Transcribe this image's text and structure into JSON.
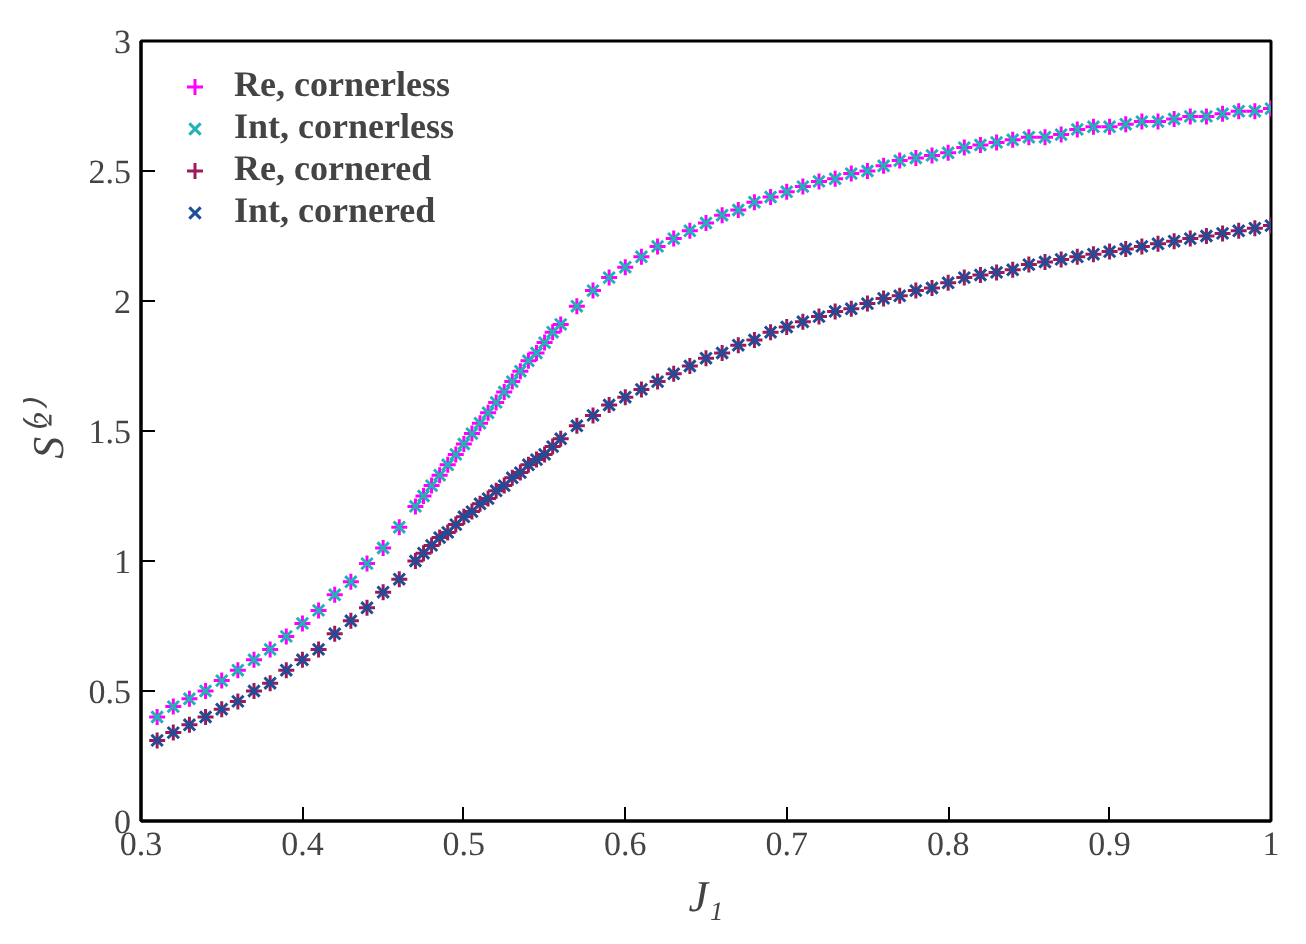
{
  "chart_data": {
    "type": "scatter",
    "xlabel": "J₁",
    "ylabel": "S⁽²⁾",
    "x": [
      0.31,
      0.32,
      0.33,
      0.34,
      0.35,
      0.36,
      0.37,
      0.38,
      0.39,
      0.4,
      0.41,
      0.42,
      0.43,
      0.44,
      0.45,
      0.46,
      0.47,
      0.475,
      0.48,
      0.485,
      0.49,
      0.495,
      0.5,
      0.505,
      0.51,
      0.515,
      0.52,
      0.525,
      0.53,
      0.535,
      0.54,
      0.545,
      0.55,
      0.555,
      0.56,
      0.57,
      0.58,
      0.59,
      0.6,
      0.61,
      0.62,
      0.63,
      0.64,
      0.65,
      0.66,
      0.67,
      0.68,
      0.69,
      0.7,
      0.71,
      0.72,
      0.73,
      0.74,
      0.75,
      0.76,
      0.77,
      0.78,
      0.79,
      0.8,
      0.81,
      0.82,
      0.83,
      0.84,
      0.85,
      0.86,
      0.87,
      0.88,
      0.89,
      0.9,
      0.91,
      0.92,
      0.93,
      0.94,
      0.95,
      0.96,
      0.97,
      0.98,
      0.99,
      1.0
    ],
    "series": [
      {
        "name": "Re, cornerless",
        "color": "#ff00ff",
        "marker": "cross",
        "values": [
          0.4,
          0.44,
          0.47,
          0.5,
          0.54,
          0.58,
          0.62,
          0.66,
          0.71,
          0.76,
          0.81,
          0.87,
          0.92,
          0.99,
          1.05,
          1.13,
          1.21,
          1.25,
          1.29,
          1.33,
          1.37,
          1.41,
          1.45,
          1.49,
          1.53,
          1.57,
          1.61,
          1.65,
          1.69,
          1.73,
          1.77,
          1.8,
          1.84,
          1.88,
          1.91,
          1.98,
          2.04,
          2.09,
          2.13,
          2.17,
          2.21,
          2.24,
          2.27,
          2.3,
          2.33,
          2.35,
          2.38,
          2.4,
          2.42,
          2.44,
          2.46,
          2.47,
          2.49,
          2.5,
          2.52,
          2.54,
          2.55,
          2.56,
          2.57,
          2.59,
          2.6,
          2.61,
          2.62,
          2.63,
          2.63,
          2.64,
          2.66,
          2.67,
          2.67,
          2.68,
          2.69,
          2.69,
          2.7,
          2.71,
          2.71,
          2.72,
          2.73,
          2.73,
          2.74
        ]
      },
      {
        "name": "Int, cornerless",
        "color": "#1fb3b8",
        "marker": "x",
        "values": [
          0.4,
          0.44,
          0.47,
          0.5,
          0.54,
          0.58,
          0.62,
          0.66,
          0.71,
          0.76,
          0.81,
          0.87,
          0.92,
          0.99,
          1.05,
          1.13,
          1.21,
          1.25,
          1.29,
          1.33,
          1.37,
          1.41,
          1.45,
          1.49,
          1.53,
          1.57,
          1.61,
          1.65,
          1.69,
          1.73,
          1.77,
          1.8,
          1.84,
          1.88,
          1.91,
          1.98,
          2.04,
          2.09,
          2.13,
          2.17,
          2.21,
          2.24,
          2.27,
          2.3,
          2.33,
          2.35,
          2.38,
          2.4,
          2.42,
          2.44,
          2.46,
          2.47,
          2.49,
          2.5,
          2.52,
          2.54,
          2.55,
          2.56,
          2.57,
          2.59,
          2.6,
          2.61,
          2.62,
          2.63,
          2.63,
          2.64,
          2.66,
          2.67,
          2.67,
          2.68,
          2.69,
          2.69,
          2.7,
          2.71,
          2.71,
          2.72,
          2.73,
          2.73,
          2.74
        ]
      },
      {
        "name": "Re, cornered",
        "color": "#9b1b5a",
        "marker": "cross",
        "values": [
          0.31,
          0.34,
          0.37,
          0.4,
          0.43,
          0.46,
          0.5,
          0.53,
          0.58,
          0.62,
          0.66,
          0.72,
          0.77,
          0.82,
          0.88,
          0.93,
          1.0,
          1.03,
          1.06,
          1.09,
          1.11,
          1.14,
          1.17,
          1.19,
          1.22,
          1.24,
          1.27,
          1.29,
          1.32,
          1.34,
          1.37,
          1.39,
          1.41,
          1.44,
          1.47,
          1.52,
          1.56,
          1.6,
          1.63,
          1.66,
          1.69,
          1.72,
          1.75,
          1.78,
          1.8,
          1.83,
          1.85,
          1.88,
          1.9,
          1.92,
          1.94,
          1.96,
          1.97,
          1.99,
          2.01,
          2.02,
          2.04,
          2.05,
          2.07,
          2.09,
          2.1,
          2.11,
          2.12,
          2.14,
          2.15,
          2.16,
          2.17,
          2.18,
          2.19,
          2.2,
          2.21,
          2.22,
          2.23,
          2.24,
          2.25,
          2.26,
          2.27,
          2.28,
          2.29
        ]
      },
      {
        "name": "Int, cornered",
        "color": "#1f4e99",
        "marker": "x",
        "values": [
          0.31,
          0.34,
          0.37,
          0.4,
          0.43,
          0.46,
          0.5,
          0.53,
          0.58,
          0.62,
          0.66,
          0.72,
          0.77,
          0.82,
          0.88,
          0.93,
          1.0,
          1.03,
          1.06,
          1.09,
          1.11,
          1.14,
          1.17,
          1.19,
          1.22,
          1.24,
          1.27,
          1.29,
          1.32,
          1.34,
          1.37,
          1.39,
          1.41,
          1.44,
          1.47,
          1.52,
          1.56,
          1.6,
          1.63,
          1.66,
          1.69,
          1.72,
          1.75,
          1.78,
          1.8,
          1.83,
          1.85,
          1.88,
          1.9,
          1.92,
          1.94,
          1.96,
          1.97,
          1.99,
          2.01,
          2.02,
          2.04,
          2.05,
          2.07,
          2.09,
          2.1,
          2.11,
          2.12,
          2.14,
          2.15,
          2.16,
          2.17,
          2.18,
          2.19,
          2.2,
          2.21,
          2.22,
          2.23,
          2.24,
          2.25,
          2.26,
          2.27,
          2.28,
          2.29
        ]
      }
    ],
    "xlim": [
      0.3,
      1
    ],
    "xticks": [
      0.3,
      0.4,
      0.5,
      0.6,
      0.7,
      0.8,
      0.9,
      1
    ],
    "ylim": [
      0,
      3
    ],
    "yticks": [
      0,
      0.5,
      1,
      1.5,
      2,
      2.5,
      3
    ],
    "grid": false,
    "legend": "top left"
  }
}
